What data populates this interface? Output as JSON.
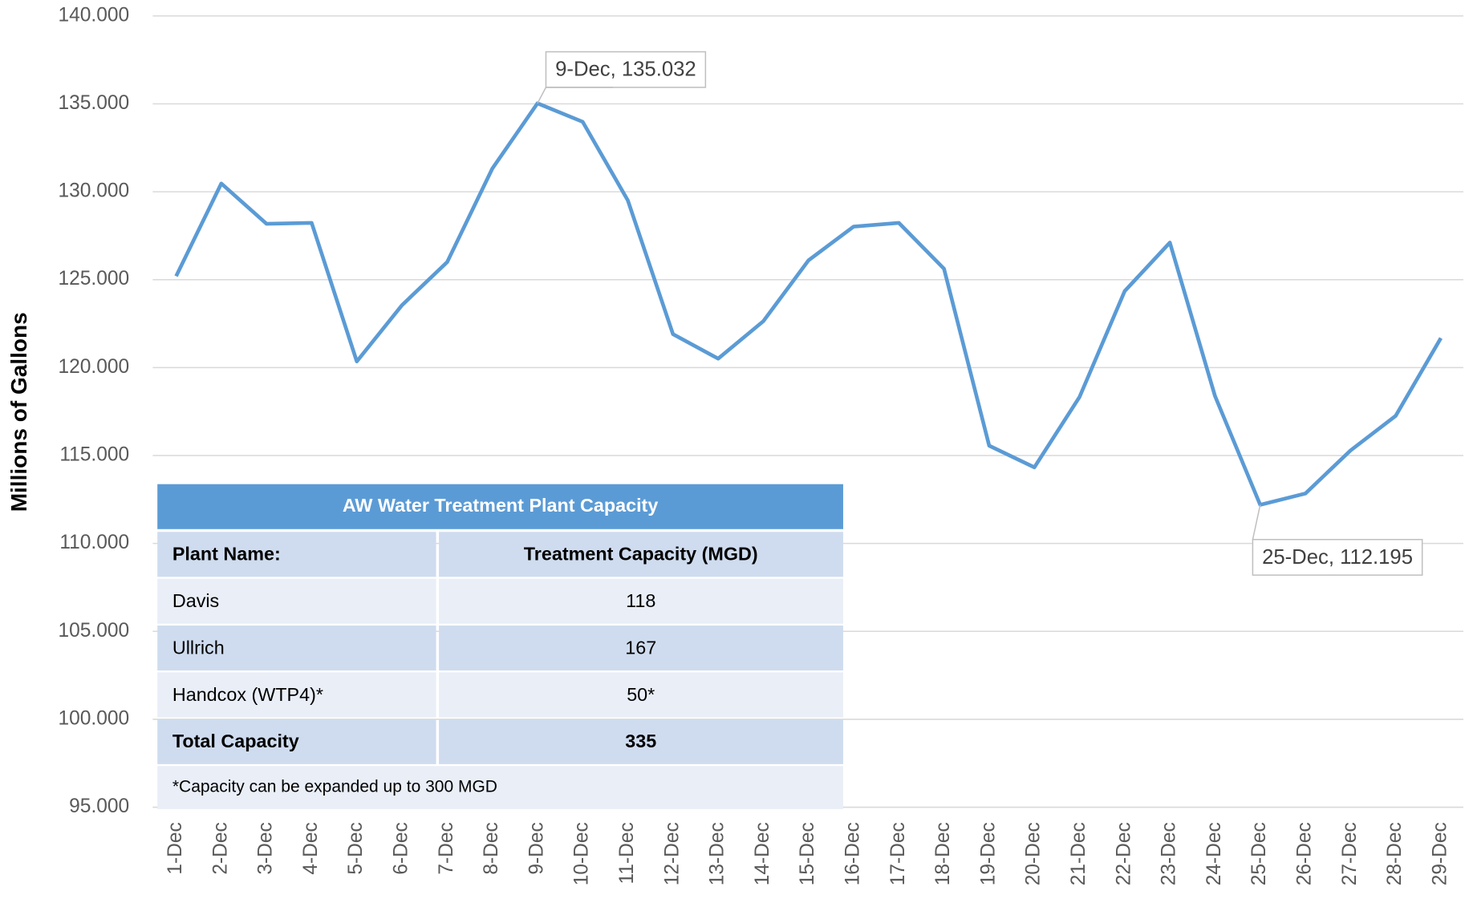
{
  "chart_data": {
    "type": "line",
    "y_label": "Millions of Gallons",
    "categories": [
      "1-Dec",
      "2-Dec",
      "3-Dec",
      "4-Dec",
      "5-Dec",
      "6-Dec",
      "7-Dec",
      "8-Dec",
      "9-Dec",
      "10-Dec",
      "11-Dec",
      "12-Dec",
      "13-Dec",
      "14-Dec",
      "15-Dec",
      "16-Dec",
      "17-Dec",
      "18-Dec",
      "19-Dec",
      "20-Dec",
      "21-Dec",
      "22-Dec",
      "23-Dec",
      "24-Dec",
      "25-Dec",
      "26-Dec",
      "27-Dec",
      "28-Dec",
      "29-Dec"
    ],
    "series": [
      {
        "color": "#5b9bd5",
        "values": [
          125.2,
          130.47,
          128.18,
          128.23,
          120.35,
          123.55,
          126.0,
          131.32,
          135.032,
          133.98,
          129.51,
          121.9,
          120.51,
          122.64,
          126.1,
          128.02,
          128.23,
          125.62,
          115.56,
          114.33,
          118.33,
          124.35,
          127.11,
          118.38,
          112.195,
          112.84,
          115.29,
          117.26,
          121.68
        ]
      }
    ],
    "annotations": [
      "9-Dec, 135.032",
      "25-Dec, 112.195"
    ],
    "ylim": [
      95,
      140
    ],
    "yticks": [
      {
        "value": 95,
        "label": "95.000"
      },
      {
        "value": 100,
        "label": "100.000"
      },
      {
        "value": 105,
        "label": "105.000"
      },
      {
        "value": 110,
        "label": "110.000"
      },
      {
        "value": 115,
        "label": "115.000"
      },
      {
        "value": 120,
        "label": "120.000"
      },
      {
        "value": 125,
        "label": "125.000"
      },
      {
        "value": 130,
        "label": "130.000"
      },
      {
        "value": 135,
        "label": "135.000"
      },
      {
        "value": 140,
        "label": "140.000"
      }
    ],
    "grid": true
  },
  "table": {
    "title": "AW Water Treatment Plant Capacity",
    "header": [
      "Plant Name:",
      "Treatment Capacity (MGD)"
    ],
    "rows": [
      [
        "Davis",
        "118"
      ],
      [
        "Ullrich",
        "167"
      ],
      [
        "Handcox (WTP4)*",
        "50*"
      ],
      [
        "Total Capacity",
        "335"
      ]
    ],
    "footnote": "*Capacity can be expanded up to 300 MGD"
  }
}
